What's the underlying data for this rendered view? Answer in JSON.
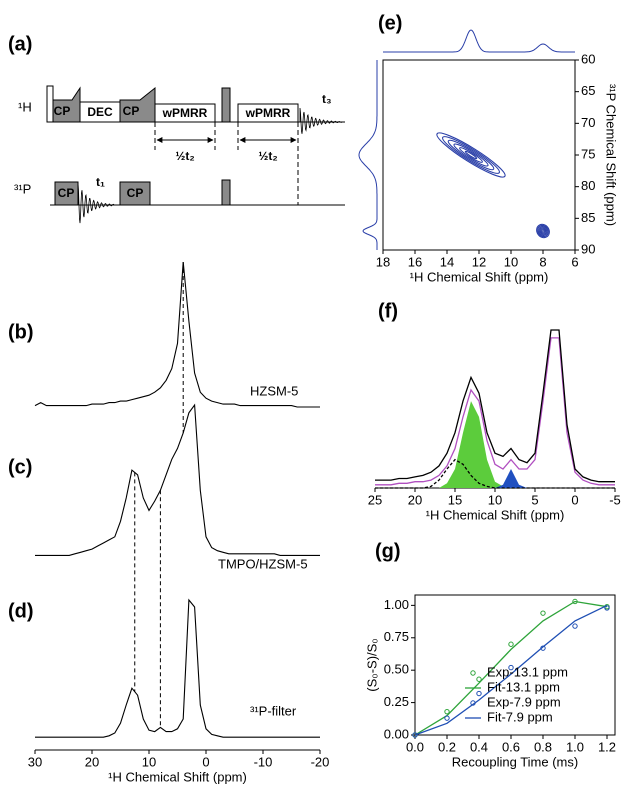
{
  "pulse_sequence": {
    "label": "(a)",
    "channels": [
      "¹H",
      "³¹P"
    ],
    "blocks": [
      "CP",
      "DEC",
      "CP",
      "wPMRR",
      "wPMRR",
      "CP",
      "CP"
    ],
    "delays": [
      "½t₂",
      "½t₂"
    ],
    "acquisition": [
      "t₃",
      "t₁"
    ]
  },
  "chart_data": [
    {
      "type": "line",
      "annotations": [
        "(b)",
        "(c)",
        "(d)"
      ],
      "xlabel": "¹H Chemical Shift (ppm)",
      "x": [
        30,
        29,
        28,
        27,
        26,
        25,
        24,
        23,
        22,
        21,
        20,
        19,
        18,
        17,
        16,
        15,
        14,
        13,
        12,
        11,
        10,
        9,
        8,
        7,
        6,
        5,
        4,
        3,
        2,
        1,
        0,
        -1,
        -2,
        -3,
        -4,
        -5,
        -6,
        -7,
        -8,
        -9,
        -10,
        -11,
        -12,
        -13,
        -14,
        -15,
        -16,
        -17,
        -18,
        -19,
        -20
      ],
      "xlim": [
        30,
        -20
      ],
      "xticks": [
        30,
        20,
        10,
        0,
        -10,
        -20
      ],
      "ylim": [
        0,
        100
      ],
      "series": [
        {
          "name": "HZSM-5",
          "color": "#000000",
          "values": [
            3,
            5,
            3,
            3,
            3,
            3,
            3,
            3,
            3,
            3,
            4,
            4,
            4,
            5,
            5,
            6,
            6,
            7,
            8,
            9,
            10,
            12,
            15,
            20,
            28,
            45,
            100,
            60,
            25,
            12,
            8,
            6,
            5,
            4,
            4,
            4,
            3,
            3,
            3,
            3,
            3,
            3,
            3,
            3,
            3,
            3,
            2,
            2,
            2,
            2,
            2
          ]
        },
        {
          "name": "TMPO/HZSM-5",
          "color": "#000000",
          "values": [
            3,
            3,
            3,
            3,
            3,
            3,
            3,
            4,
            5,
            6,
            7,
            9,
            11,
            13,
            15,
            25,
            40,
            58,
            55,
            40,
            32,
            38,
            45,
            55,
            65,
            72,
            82,
            95,
            100,
            45,
            15,
            8,
            6,
            5,
            4,
            4,
            4,
            4,
            4,
            4,
            4,
            4,
            4,
            3,
            3,
            3,
            3,
            3,
            3,
            3,
            3
          ]
        },
        {
          "name": "³¹P-filter",
          "color": "#000000",
          "values": [
            2,
            2,
            2,
            2,
            2,
            2,
            2,
            2,
            2,
            2,
            2,
            2,
            2,
            3,
            5,
            12,
            25,
            37,
            32,
            15,
            7,
            6,
            9,
            6,
            6,
            8,
            15,
            100,
            95,
            25,
            8,
            4,
            3,
            2,
            2,
            2,
            2,
            2,
            2,
            2,
            2,
            2,
            2,
            2,
            2,
            2,
            2,
            2,
            2,
            2,
            2
          ]
        }
      ],
      "reference_lines": [
        4,
        12.5,
        8
      ]
    },
    {
      "type": "contour",
      "label": "(e)",
      "xlabel": "¹H Chemical Shift (ppm)",
      "ylabel": "³¹P Chemical Shift (ppm)",
      "x": [
        12.5,
        8
      ],
      "values": [
        75,
        87
      ],
      "color": "#2a3fa8",
      "xlim": [
        18,
        6
      ],
      "xticks": [
        18,
        16,
        14,
        12,
        10,
        8,
        6
      ],
      "ylim": [
        90,
        60
      ],
      "yticks": [
        60,
        65,
        70,
        75,
        80,
        85,
        90
      ]
    },
    {
      "type": "line",
      "label": "(f)",
      "xlabel": "¹H Chemical Shift (ppm)",
      "x": [
        25,
        24,
        23,
        22,
        21,
        20,
        19,
        18,
        17,
        16,
        15,
        14,
        13,
        12,
        11,
        10,
        9,
        8,
        7,
        6,
        5,
        4,
        3,
        2,
        1,
        0,
        -1,
        -2,
        -3,
        -4,
        -5
      ],
      "xlim": [
        25,
        -5
      ],
      "xticks": [
        25,
        20,
        15,
        10,
        5,
        0,
        -5
      ],
      "ylim": [
        0,
        100
      ],
      "series": [
        {
          "color": "#5ccc3c",
          "fill": true,
          "values": [
            0,
            0,
            0,
            0,
            0,
            0,
            0,
            0,
            0,
            3,
            12,
            35,
            55,
            45,
            18,
            4,
            1,
            0,
            0,
            0,
            0,
            0,
            0,
            0,
            0,
            0,
            0,
            0,
            0,
            0,
            0
          ]
        },
        {
          "color": "#2050c0",
          "fill": true,
          "values": [
            0,
            0,
            0,
            0,
            0,
            0,
            0,
            0,
            0,
            0,
            0,
            0,
            0,
            0,
            0,
            0,
            2,
            12,
            2,
            0,
            0,
            0,
            0,
            0,
            0,
            0,
            0,
            0,
            0,
            0,
            0
          ]
        },
        {
          "color": "#000000",
          "dash": true,
          "values": [
            0,
            0,
            0,
            0,
            0,
            0,
            0,
            1,
            5,
            12,
            18,
            15,
            8,
            3,
            1,
            0,
            0,
            0,
            0,
            0,
            0,
            0,
            0,
            0,
            0,
            0,
            0,
            0,
            0,
            0,
            0
          ]
        },
        {
          "color": "#b04fc0",
          "values": [
            2,
            2,
            2,
            3,
            3,
            4,
            4,
            5,
            8,
            14,
            25,
            45,
            62,
            55,
            30,
            15,
            12,
            18,
            12,
            12,
            18,
            55,
            95,
            95,
            35,
            10,
            5,
            3,
            2,
            2,
            2
          ]
        },
        {
          "color": "#000000",
          "values": [
            5,
            5,
            5,
            6,
            6,
            7,
            8,
            10,
            14,
            22,
            35,
            55,
            70,
            60,
            35,
            22,
            20,
            25,
            18,
            16,
            22,
            60,
            100,
            100,
            40,
            12,
            7,
            5,
            4,
            4,
            4
          ]
        }
      ]
    },
    {
      "type": "line",
      "label": "(g)",
      "xlabel": "Recoupling Time (ms)",
      "ylabel": "(S₀-S)/S₀",
      "x": [
        0,
        0.2,
        0.4,
        0.6,
        0.8,
        1.0,
        1.2
      ],
      "xlim": [
        0,
        1.25
      ],
      "xticks": [
        {
          "value": 0,
          "label": "0.0"
        },
        0.2,
        0.4,
        0.6,
        0.8,
        {
          "value": 1,
          "label": "1.0"
        },
        1.2
      ],
      "ylim": [
        0,
        1.08
      ],
      "yticks": [
        {
          "value": 0,
          "label": "0.00"
        },
        0.25,
        {
          "value": 0.5,
          "label": "0.50"
        },
        0.75,
        {
          "value": 1,
          "label": "1.00"
        }
      ],
      "legend": "lower right",
      "series": [
        {
          "name": "Exp-13.1 ppm",
          "color": "#2ea43a",
          "mode": "markers",
          "values": [
            0,
            0.18,
            0.43,
            0.7,
            0.94,
            1.03,
            0.99
          ]
        },
        {
          "name": "Fit-13.1 ppm",
          "color": "#2ea43a",
          "mode": "lines",
          "values": [
            0,
            0.15,
            0.4,
            0.66,
            0.88,
            1.03,
            0.99
          ]
        },
        {
          "name": "Exp-7.9 ppm",
          "color": "#1f4fb4",
          "mode": "markers",
          "values": [
            0,
            0.13,
            0.32,
            0.52,
            0.67,
            0.84,
            0.98
          ]
        },
        {
          "name": "Fit-7.9 ppm",
          "color": "#1f4fb4",
          "mode": "lines",
          "values": [
            0,
            0.09,
            0.27,
            0.47,
            0.68,
            0.88,
            1.0
          ]
        }
      ]
    }
  ]
}
